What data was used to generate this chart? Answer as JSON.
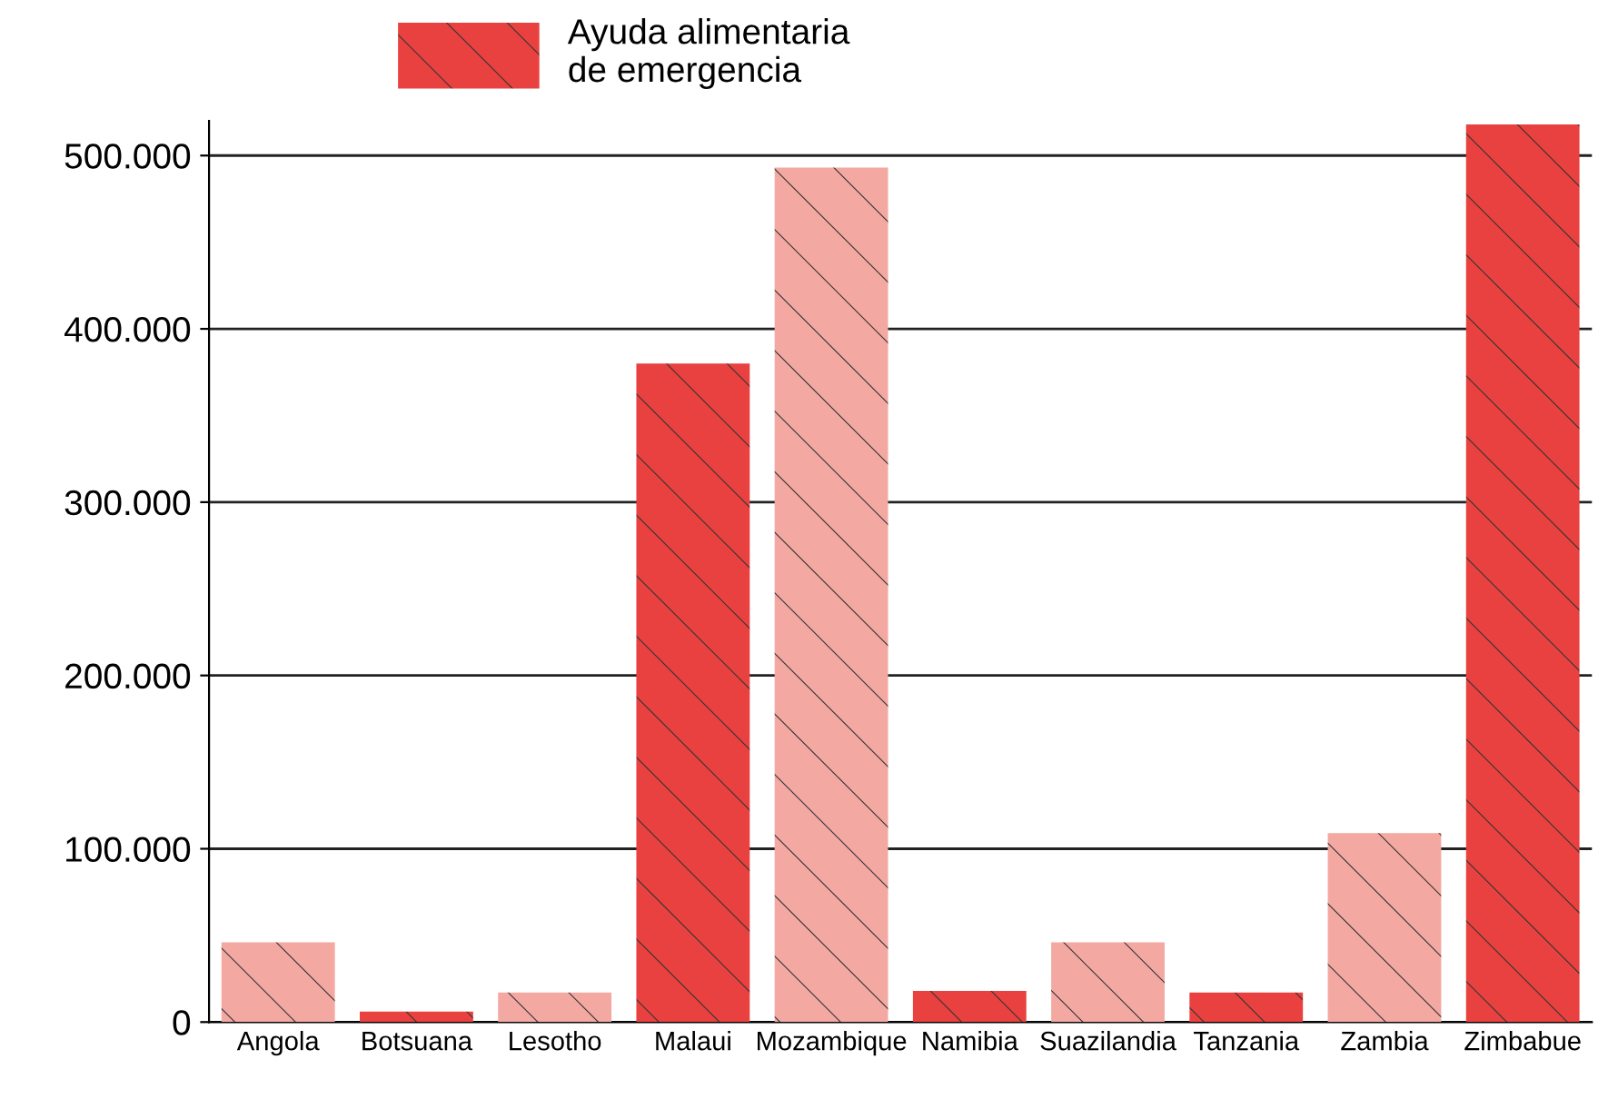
{
  "chart_data": {
    "type": "bar",
    "categories": [
      "Angola",
      "Botsuana",
      "Lesotho",
      "Malaui",
      "Mozambique",
      "Namibia",
      "Suazilandia",
      "Tanzania",
      "Zambia",
      "Zimbabue"
    ],
    "series": [
      {
        "name": "Ayuda alimentaria\nde emergencia",
        "color": "#e8413f",
        "colors": [
          "#f4a8a2",
          "#e8413f",
          "#f4a8a2",
          "#e8413f",
          "#f4a8a2",
          "#e8413f",
          "#f4a8a2",
          "#e8413f",
          "#f4a8a2",
          "#e8413f"
        ],
        "values": [
          46000,
          6000,
          17000,
          380000,
          493000,
          18000,
          46000,
          17000,
          109000,
          518000
        ]
      }
    ],
    "ylim": [
      0,
      520000
    ],
    "yticks": [
      {
        "value": 0,
        "label": "0"
      },
      {
        "value": 100000,
        "label": "100.000"
      },
      {
        "value": 200000,
        "label": "200.000"
      },
      {
        "value": 300000,
        "label": "300.000"
      },
      {
        "value": 400000,
        "label": "400.000"
      },
      {
        "value": 500000,
        "label": "500.000"
      }
    ],
    "grid": "y",
    "legend": "top"
  }
}
